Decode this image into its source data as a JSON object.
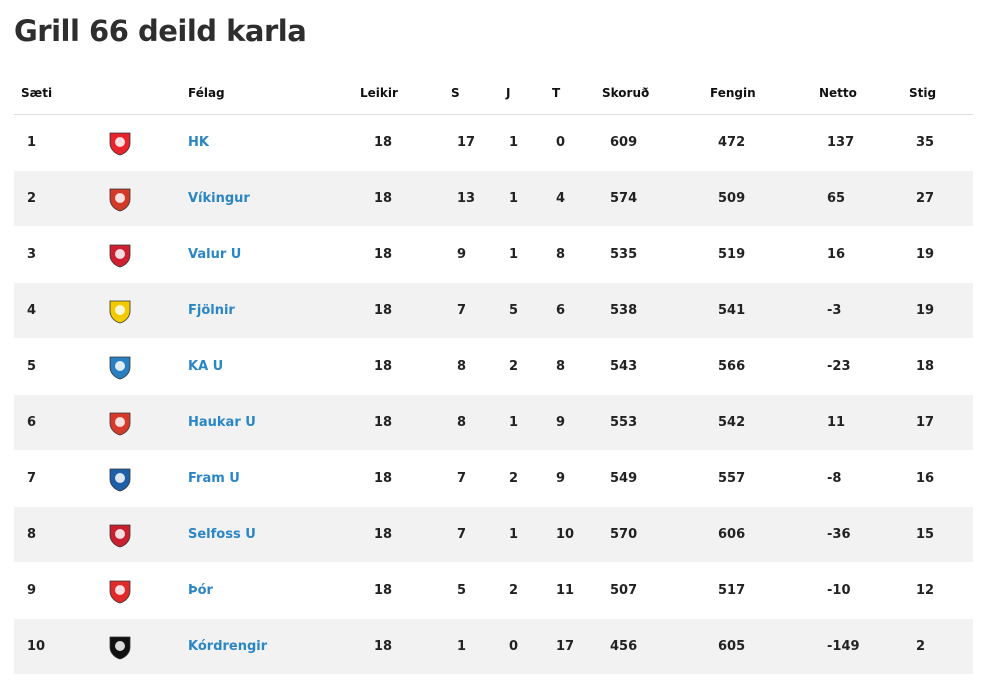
{
  "title": "Grill 66 deild karla",
  "headers": {
    "saeti": "Sæti",
    "felag": "Félag",
    "leikir": "Leikir",
    "s": "S",
    "j": "J",
    "t": "T",
    "skorud": "Skoruð",
    "fengin": "Fengin",
    "netto": "Netto",
    "stig": "Stig"
  },
  "rows": [
    {
      "rank": "1",
      "club": "HK",
      "games": "18",
      "w": "17",
      "d": "1",
      "l": "0",
      "scored": "609",
      "against": "472",
      "net": "137",
      "points": "35",
      "logo_color": "#e8232b"
    },
    {
      "rank": "2",
      "club": "Víkingur",
      "games": "18",
      "w": "13",
      "d": "1",
      "l": "4",
      "scored": "574",
      "against": "509",
      "net": "65",
      "points": "27",
      "logo_color": "#d03a27"
    },
    {
      "rank": "3",
      "club": "Valur U",
      "games": "18",
      "w": "9",
      "d": "1",
      "l": "8",
      "scored": "535",
      "against": "519",
      "net": "16",
      "points": "19",
      "logo_color": "#cf2030"
    },
    {
      "rank": "4",
      "club": "Fjölnir",
      "games": "18",
      "w": "7",
      "d": "5",
      "l": "6",
      "scored": "538",
      "against": "541",
      "net": "-3",
      "points": "19",
      "logo_color": "#f3c900"
    },
    {
      "rank": "5",
      "club": "KA U",
      "games": "18",
      "w": "8",
      "d": "2",
      "l": "8",
      "scored": "543",
      "against": "566",
      "net": "-23",
      "points": "18",
      "logo_color": "#2a7fc0"
    },
    {
      "rank": "6",
      "club": "Haukar U",
      "games": "18",
      "w": "8",
      "d": "1",
      "l": "9",
      "scored": "553",
      "against": "542",
      "net": "11",
      "points": "17",
      "logo_color": "#d63a2a"
    },
    {
      "rank": "7",
      "club": "Fram U",
      "games": "18",
      "w": "7",
      "d": "2",
      "l": "9",
      "scored": "549",
      "against": "557",
      "net": "-8",
      "points": "16",
      "logo_color": "#1f5fa8"
    },
    {
      "rank": "8",
      "club": "Selfoss U",
      "games": "18",
      "w": "7",
      "d": "1",
      "l": "10",
      "scored": "570",
      "against": "606",
      "net": "-36",
      "points": "15",
      "logo_color": "#c8202f"
    },
    {
      "rank": "9",
      "club": "Þór",
      "games": "18",
      "w": "5",
      "d": "2",
      "l": "11",
      "scored": "507",
      "against": "517",
      "net": "-10",
      "points": "12",
      "logo_color": "#e02a2a"
    },
    {
      "rank": "10",
      "club": "Kórdrengir",
      "games": "18",
      "w": "1",
      "d": "0",
      "l": "17",
      "scored": "456",
      "against": "605",
      "net": "-149",
      "points": "2",
      "logo_color": "#111111"
    }
  ]
}
